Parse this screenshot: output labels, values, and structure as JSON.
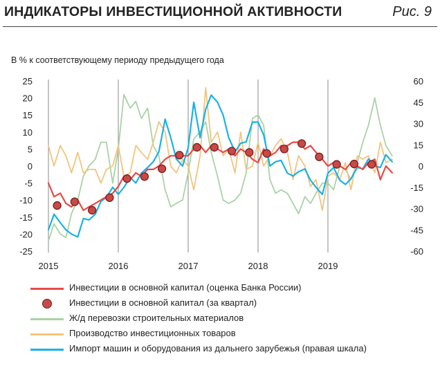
{
  "header": {
    "title": "ИНДИКАТОРЫ ИНВЕСТИЦИОННОЙ АКТИВНОСТИ",
    "figure_label": "Рис. 9"
  },
  "chart_data": {
    "type": "line",
    "subtitle": "В % к соответствующему периоду предыдущего года",
    "x_tick_labels": [
      "2015",
      "2016",
      "2017",
      "2018",
      "2019"
    ],
    "left_axis": {
      "ticks": [
        "25",
        "20",
        "15",
        "10",
        "5",
        "0",
        "-5",
        "-10",
        "-15",
        "-20",
        "-25"
      ],
      "ylim": [
        -25,
        25
      ]
    },
    "right_axis": {
      "ticks": [
        "60",
        "45",
        "30",
        "15",
        "0",
        "-15",
        "-30",
        "-45",
        "-60"
      ],
      "ylim": [
        -60,
        60
      ]
    },
    "grid": "vertical lines at year boundaries",
    "legend_placement": "bottom",
    "series": [
      {
        "name": "Инвестиции в основной капитал (оценка Банка России)",
        "axis": "left",
        "color": "#e84a45",
        "x": [
          2015.0,
          2015.08,
          2015.17,
          2015.25,
          2015.33,
          2015.42,
          2015.5,
          2015.58,
          2015.67,
          2015.75,
          2015.83,
          2015.92,
          2016.0,
          2016.08,
          2016.17,
          2016.25,
          2016.33,
          2016.42,
          2016.5,
          2016.58,
          2016.67,
          2016.75,
          2016.83,
          2016.92,
          2017.0,
          2017.08,
          2017.17,
          2017.25,
          2017.33,
          2017.42,
          2017.5,
          2017.58,
          2017.67,
          2017.75,
          2017.83,
          2017.92,
          2018.0,
          2018.08,
          2018.17,
          2018.25,
          2018.33,
          2018.42,
          2018.5,
          2018.58,
          2018.67,
          2018.75,
          2018.83,
          2018.92,
          2019.0,
          2019.08,
          2019.17,
          2019.25,
          2019.33,
          2019.42,
          2019.5,
          2019.58,
          2019.67,
          2019.75,
          2019.83,
          2019.92
        ],
        "values": [
          -5,
          -9,
          -8,
          -11,
          -12,
          -10,
          -13,
          -12,
          -11,
          -10,
          -9,
          -8,
          -6,
          -3,
          -4,
          -2,
          -3,
          -1,
          -1,
          0,
          2,
          3,
          3,
          3,
          3,
          5,
          6,
          4,
          6,
          5,
          4,
          5,
          3,
          5,
          4,
          2,
          1,
          5,
          3,
          4,
          6,
          6,
          7,
          7,
          5,
          6,
          4,
          2,
          0,
          1,
          0,
          -1,
          1,
          0,
          -1,
          1,
          2,
          -4,
          0,
          -2
        ]
      },
      {
        "name": "Инвестиции в основной капитал (за квартал)",
        "axis": "left",
        "color": "#c74a48",
        "x": [
          2015.125,
          2015.375,
          2015.625,
          2015.875,
          2016.125,
          2016.375,
          2016.625,
          2016.875,
          2017.125,
          2017.375,
          2017.625,
          2017.875,
          2018.125,
          2018.375,
          2018.625,
          2018.875,
          2019.125,
          2019.375,
          2019.625
        ],
        "values": [
          -11.6,
          -10.5,
          -13,
          -9.3,
          -3.7,
          -3.1,
          -0.8,
          3.2,
          5.5,
          5.5,
          4.4,
          4,
          3.7,
          5,
          6.6,
          2.7,
          0.5,
          0.6,
          0.5
        ]
      },
      {
        "name": "Ж/д перевозки строительных материалов",
        "axis": "left",
        "color": "#a9d2a6",
        "x": [
          2015.0,
          2015.08,
          2015.17,
          2015.25,
          2015.33,
          2015.42,
          2015.5,
          2015.58,
          2015.67,
          2015.75,
          2015.83,
          2015.92,
          2016.0,
          2016.08,
          2016.17,
          2016.25,
          2016.33,
          2016.42,
          2016.5,
          2016.58,
          2016.67,
          2016.75,
          2016.83,
          2016.92,
          2017.0,
          2017.08,
          2017.17,
          2017.25,
          2017.33,
          2017.42,
          2017.5,
          2017.58,
          2017.67,
          2017.75,
          2017.83,
          2017.92,
          2018.0,
          2018.08,
          2018.17,
          2018.25,
          2018.33,
          2018.42,
          2018.5,
          2018.58,
          2018.67,
          2018.75,
          2018.83,
          2018.92,
          2019.0,
          2019.08,
          2019.17,
          2019.25,
          2019.33,
          2019.42,
          2019.5,
          2019.58,
          2019.67,
          2019.75,
          2019.83,
          2019.92
        ],
        "values": [
          -22,
          -17,
          -20,
          -21,
          -14,
          -10,
          -3,
          0,
          2,
          7,
          7,
          -5,
          5,
          21,
          17,
          19,
          14,
          17,
          6,
          3,
          -7,
          -12,
          -11,
          -10,
          -2,
          8,
          10,
          13,
          4,
          -3,
          -10,
          -11,
          -10,
          -8,
          -2,
          14,
          15,
          12,
          -4,
          -8,
          -7,
          -8,
          -11,
          -14,
          -9,
          -11,
          -8,
          -5,
          -5,
          -7,
          0,
          -1,
          -4,
          1,
          7,
          12,
          20,
          12,
          6,
          3
        ]
      },
      {
        "name": "Производство инвестиционных товаров",
        "axis": "left",
        "color": "#f2c47e",
        "x": [
          2015.0,
          2015.08,
          2015.17,
          2015.25,
          2015.33,
          2015.42,
          2015.5,
          2015.58,
          2015.67,
          2015.75,
          2015.83,
          2015.92,
          2016.0,
          2016.08,
          2016.17,
          2016.25,
          2016.33,
          2016.42,
          2016.5,
          2016.58,
          2016.67,
          2016.75,
          2016.83,
          2016.92,
          2017.0,
          2017.08,
          2017.17,
          2017.25,
          2017.33,
          2017.42,
          2017.5,
          2017.58,
          2017.67,
          2017.75,
          2017.83,
          2017.92,
          2018.0,
          2018.08,
          2018.17,
          2018.25,
          2018.33,
          2018.42,
          2018.5,
          2018.58,
          2018.67,
          2018.75,
          2018.83,
          2018.92,
          2019.0,
          2019.08,
          2019.17,
          2019.25,
          2019.33,
          2019.42,
          2019.5,
          2019.58,
          2019.67,
          2019.75,
          2019.83,
          2019.92
        ],
        "values": [
          6,
          0,
          6,
          3,
          -2,
          4,
          -2,
          -1,
          -1,
          -5,
          -1,
          0,
          6,
          -3,
          -2,
          6,
          4,
          2,
          7,
          13,
          10,
          0,
          -2,
          2,
          0,
          -7,
          3,
          23,
          7,
          10,
          3,
          5,
          -2,
          10,
          -1,
          0,
          7,
          0,
          3,
          6,
          8,
          4,
          -4,
          3,
          0,
          -6,
          -4,
          -13,
          -3,
          -2,
          -4,
          1,
          -7,
          3,
          2,
          3,
          -2,
          7,
          1,
          2
        ]
      },
      {
        "name": "Импорт машин и оборудования из дальнего зарубежья (правая шкала)",
        "axis": "right",
        "color": "#19b2e5",
        "x": [
          2015.0,
          2015.08,
          2015.17,
          2015.25,
          2015.33,
          2015.42,
          2015.5,
          2015.58,
          2015.67,
          2015.75,
          2015.83,
          2015.92,
          2016.0,
          2016.08,
          2016.17,
          2016.25,
          2016.33,
          2016.42,
          2016.5,
          2016.58,
          2016.67,
          2016.75,
          2016.83,
          2016.92,
          2017.0,
          2017.08,
          2017.17,
          2017.25,
          2017.33,
          2017.42,
          2017.5,
          2017.58,
          2017.67,
          2017.75,
          2017.83,
          2017.92,
          2018.0,
          2018.08,
          2018.17,
          2018.25,
          2018.33,
          2018.42,
          2018.5,
          2018.58,
          2018.67,
          2018.75,
          2018.83,
          2018.92,
          2019.0,
          2019.08,
          2019.17,
          2019.25,
          2019.33,
          2019.42,
          2019.5,
          2019.58,
          2019.67,
          2019.75,
          2019.83,
          2019.92
        ],
        "values": [
          -45,
          -34,
          -40,
          -45,
          -48,
          -50,
          -37,
          -38,
          -34,
          -25,
          -22,
          -15,
          -20,
          -15,
          -8,
          -12,
          -5,
          -1,
          3,
          10,
          33,
          20,
          5,
          0,
          13,
          45,
          20,
          40,
          50,
          45,
          36,
          20,
          10,
          16,
          17,
          31,
          31,
          22,
          0,
          3,
          4,
          -5,
          -7,
          -4,
          -2,
          -10,
          -15,
          -20,
          -5,
          -1,
          -10,
          -13,
          -9,
          -1,
          -2,
          5,
          0,
          -1,
          8,
          3
        ]
      }
    ]
  }
}
